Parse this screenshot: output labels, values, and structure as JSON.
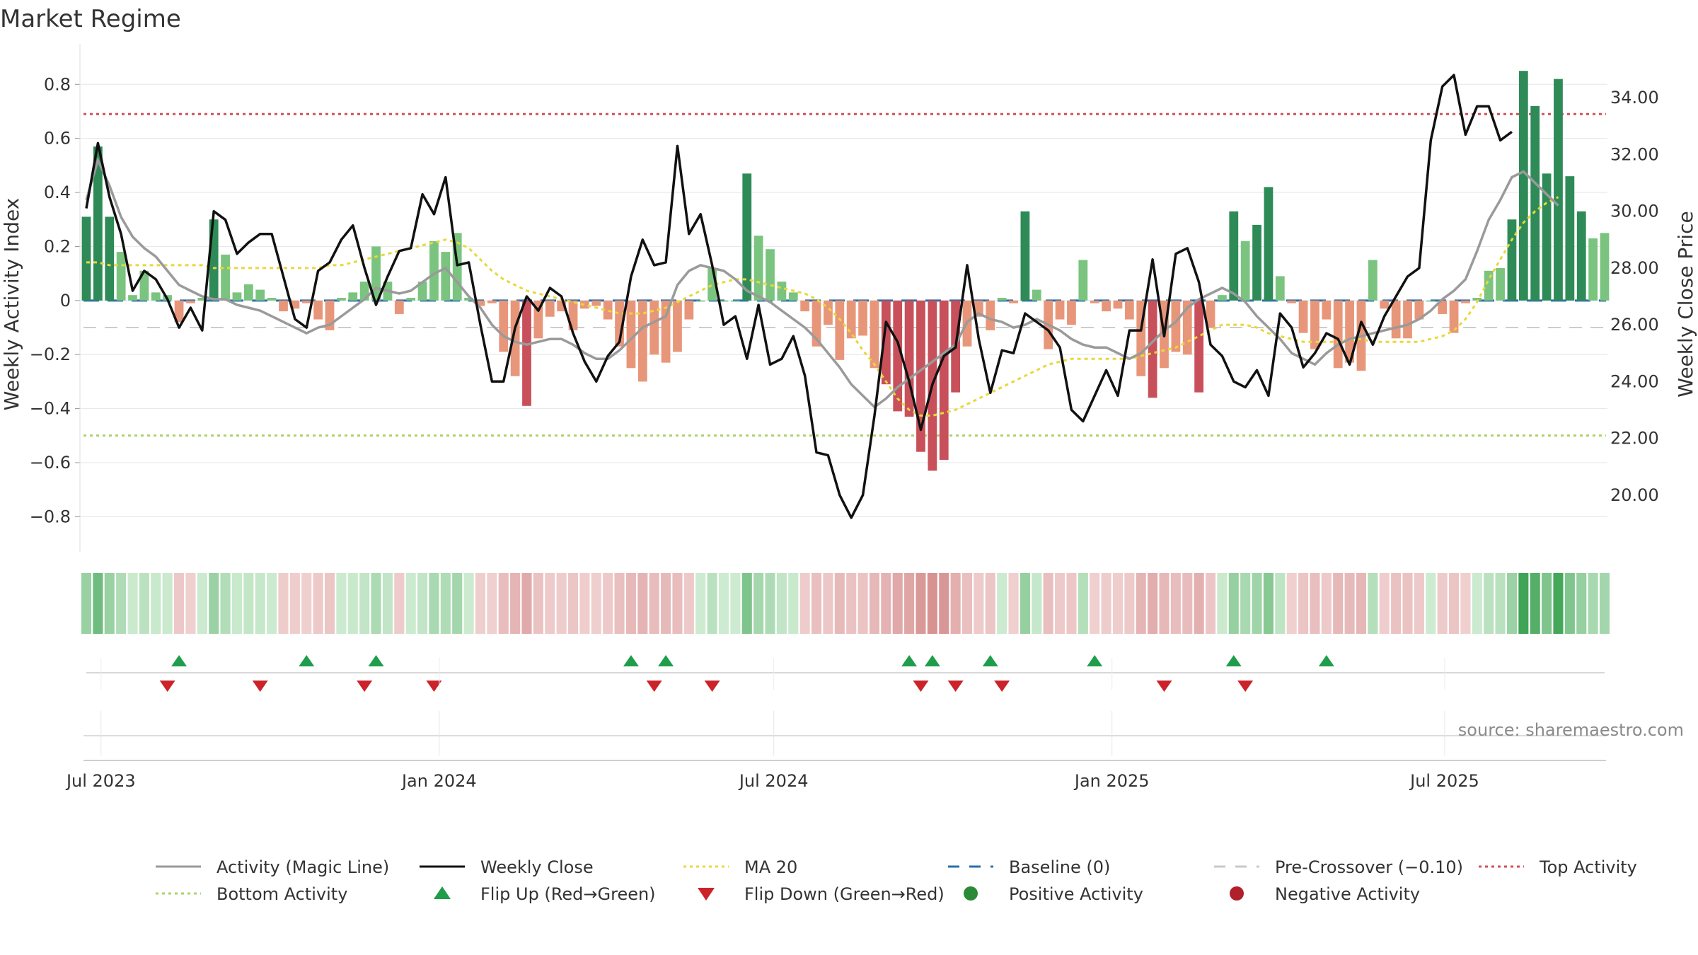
{
  "chart_data": {
    "type": "bar+line",
    "title": "Market Regime",
    "ylabel_left": "Weekly Activity Index",
    "ylabel_right": "Weekly Close Price",
    "source_note": "source: sharemaestro.com",
    "left_axis": {
      "ylim": [
        -0.93,
        0.95
      ],
      "ticks": [
        -0.8,
        -0.6,
        -0.4,
        -0.2,
        0,
        0.2,
        0.4,
        0.6,
        0.8
      ],
      "tick_labels": [
        "−0.8",
        "−0.6",
        "−0.4",
        "−0.2",
        "0",
        "0.2",
        "0.4",
        "0.6",
        "0.8"
      ]
    },
    "right_axis": {
      "ylim": [
        18.0,
        35.9
      ],
      "ticks": [
        20,
        22,
        24,
        26,
        28,
        30,
        32,
        34
      ],
      "tick_labels": [
        "20.00",
        "22.00",
        "24.00",
        "26.00",
        "28.00",
        "30.00",
        "32.00",
        "34.00"
      ]
    },
    "x_axis": {
      "start": "2023-06-23",
      "end": "2025-09-26",
      "ticks": [
        {
          "date": "2023-07-01",
          "label": "Jul 2023"
        },
        {
          "date": "2024-01-01",
          "label": "Jan 2024"
        },
        {
          "date": "2024-07-01",
          "label": "Jul 2024"
        },
        {
          "date": "2025-01-01",
          "label": "Jan 2025"
        },
        {
          "date": "2025-07-01",
          "label": "Jul 2025"
        }
      ]
    },
    "reference_lines": {
      "top_activity": 0.69,
      "bottom_activity": -0.5,
      "pre_crossover": -0.1,
      "baseline": 0
    },
    "activity_index": [
      0.31,
      0.57,
      0.31,
      0.18,
      0.02,
      0.11,
      0.03,
      0.02,
      -0.08,
      -0.01,
      0.01,
      0.3,
      0.17,
      0.03,
      0.06,
      0.04,
      0.01,
      -0.04,
      -0.03,
      -0.01,
      -0.07,
      -0.11,
      0.01,
      0.03,
      0.07,
      0.2,
      0.07,
      -0.05,
      0.01,
      0.07,
      0.22,
      0.18,
      0.25,
      0.01,
      -0.02,
      -0.01,
      -0.19,
      -0.28,
      -0.39,
      -0.14,
      -0.06,
      -0.04,
      -0.11,
      -0.03,
      -0.02,
      -0.07,
      -0.17,
      -0.25,
      -0.3,
      -0.2,
      -0.23,
      -0.19,
      -0.07,
      0.0,
      0.12,
      0.0,
      0.0,
      0.47,
      0.24,
      0.19,
      0.07,
      0.03,
      -0.04,
      -0.17,
      -0.09,
      -0.22,
      -0.14,
      -0.13,
      -0.25,
      -0.31,
      -0.41,
      -0.43,
      -0.56,
      -0.63,
      -0.59,
      -0.34,
      -0.17,
      -0.06,
      -0.11,
      0.01,
      -0.01,
      0.33,
      0.04,
      -0.18,
      -0.07,
      -0.09,
      0.15,
      -0.01,
      -0.04,
      -0.03,
      -0.07,
      -0.28,
      -0.36,
      -0.25,
      -0.19,
      -0.2,
      -0.34,
      -0.1,
      0.02,
      0.33,
      0.22,
      0.28,
      0.42,
      0.09,
      -0.01,
      -0.12,
      -0.18,
      -0.07,
      -0.25,
      -0.23,
      -0.26,
      0.15,
      -0.03,
      -0.14,
      -0.14,
      -0.07,
      0.0,
      -0.05,
      -0.12,
      -0.01,
      0.01,
      0.11,
      0.12,
      0.3,
      0.85,
      0.72,
      0.47,
      0.82,
      0.46,
      0.33,
      0.23,
      0.25
    ],
    "weekly_close": [
      30.1,
      32.4,
      30.5,
      29.2,
      27.2,
      27.9,
      27.6,
      26.9,
      25.9,
      26.6,
      25.8,
      30.0,
      29.7,
      28.5,
      28.9,
      29.2,
      29.2,
      27.7,
      26.2,
      25.9,
      27.9,
      28.2,
      29.0,
      29.5,
      28.0,
      26.7,
      27.7,
      28.6,
      28.7,
      30.6,
      29.9,
      31.2,
      28.1,
      28.2,
      26.0,
      24.0,
      24.0,
      25.9,
      27.0,
      26.5,
      27.3,
      27.0,
      25.7,
      24.7,
      24.0,
      24.9,
      25.4,
      27.7,
      29.0,
      28.1,
      28.2,
      32.3,
      29.2,
      29.9,
      28.1,
      26.0,
      26.3,
      24.8,
      26.7,
      24.6,
      24.8,
      25.6,
      24.2,
      21.5,
      21.4,
      20.0,
      19.2,
      20.0,
      22.8,
      26.1,
      25.4,
      24.0,
      22.3,
      23.9,
      24.9,
      25.2,
      28.1,
      25.5,
      23.6,
      25.1,
      25.0,
      26.4,
      26.1,
      25.8,
      25.2,
      23.0,
      22.6,
      23.5,
      24.4,
      23.5,
      25.8,
      25.8,
      28.3,
      25.6,
      28.5,
      28.7,
      27.5,
      25.3,
      24.9,
      24.0,
      23.8,
      24.4,
      23.5,
      26.4,
      25.9,
      24.5,
      25.0,
      25.7,
      25.5,
      24.6,
      26.1,
      25.3,
      26.3,
      27.0,
      27.7,
      28.0,
      32.5,
      34.4,
      34.8,
      32.7,
      33.7,
      33.7,
      32.5,
      32.8
    ],
    "magic_line": [
      30.4,
      31.8,
      30.9,
      29.8,
      29.1,
      28.7,
      28.4,
      27.9,
      27.4,
      27.2,
      27.0,
      26.9,
      26.9,
      26.7,
      26.6,
      26.5,
      26.3,
      26.1,
      25.9,
      25.7,
      25.9,
      26.0,
      26.3,
      26.6,
      26.9,
      27.3,
      27.2,
      27.1,
      27.2,
      27.5,
      27.8,
      28.0,
      27.5,
      27.0,
      26.6,
      26.0,
      25.6,
      25.4,
      25.3,
      25.4,
      25.5,
      25.5,
      25.3,
      25.0,
      24.8,
      24.8,
      25.1,
      25.5,
      25.9,
      26.1,
      26.3,
      27.4,
      27.9,
      28.1,
      28.0,
      27.9,
      27.6,
      27.2,
      27.0,
      26.8,
      26.5,
      26.2,
      25.9,
      25.5,
      25.0,
      24.5,
      23.9,
      23.5,
      23.1,
      23.4,
      23.8,
      24.1,
      24.4,
      24.7,
      25.0,
      25.3,
      26.1,
      26.4,
      26.2,
      26.1,
      25.9,
      26.0,
      26.2,
      26.0,
      25.8,
      25.5,
      25.3,
      25.2,
      25.2,
      25.0,
      24.8,
      25.0,
      25.4,
      25.8,
      26.1,
      26.6,
      26.9,
      27.1,
      27.3,
      27.1,
      26.8,
      26.3,
      25.9,
      25.5,
      25.0,
      24.8,
      24.6,
      25.0,
      25.3,
      25.5,
      25.6,
      25.7,
      25.8,
      25.9,
      26.0,
      26.2,
      26.5,
      26.9,
      27.2,
      27.6,
      28.6,
      29.7,
      30.4,
      31.2,
      31.4,
      31.0,
      30.6,
      30.2
    ],
    "ma20": [
      28.2,
      28.2,
      28.1,
      28.1,
      28.1,
      28.1,
      28.1,
      28.1,
      28.1,
      28.1,
      28.1,
      28.0,
      28.0,
      28.0,
      28.0,
      28.0,
      28.0,
      28.0,
      28.0,
      28.0,
      28.0,
      28.1,
      28.1,
      28.2,
      28.3,
      28.4,
      28.5,
      28.6,
      28.7,
      28.8,
      28.9,
      29.0,
      28.9,
      28.7,
      28.3,
      27.9,
      27.6,
      27.4,
      27.2,
      27.1,
      27.0,
      26.9,
      26.8,
      26.7,
      26.6,
      26.5,
      26.4,
      26.4,
      26.4,
      26.5,
      26.6,
      26.8,
      27.0,
      27.2,
      27.4,
      27.5,
      27.6,
      27.6,
      27.5,
      27.4,
      27.3,
      27.2,
      27.1,
      26.9,
      26.6,
      26.2,
      25.7,
      25.1,
      24.6,
      24.0,
      23.4,
      23.0,
      22.8,
      22.8,
      22.9,
      23.0,
      23.2,
      23.4,
      23.6,
      23.8,
      24.0,
      24.2,
      24.4,
      24.6,
      24.7,
      24.8,
      24.8,
      24.8,
      24.8,
      24.8,
      24.8,
      24.9,
      25.0,
      25.1,
      25.2,
      25.4,
      25.6,
      25.8,
      26.0,
      26.0,
      26.0,
      25.9,
      25.7,
      25.6,
      25.5,
      25.4,
      25.4,
      25.4,
      25.4,
      25.5,
      25.5,
      25.4,
      25.4,
      25.4,
      25.4,
      25.4,
      25.5,
      25.6,
      25.8,
      26.2,
      26.8,
      27.6,
      28.3,
      29.0,
      29.6,
      30.0,
      30.3,
      30.5
    ],
    "regime_band": [
      0.31,
      0.57,
      0.31,
      0.18,
      0.02,
      0.11,
      0.03,
      0.02,
      -0.08,
      -0.01,
      0.01,
      0.3,
      0.17,
      0.03,
      0.06,
      0.04,
      0.01,
      -0.04,
      -0.03,
      -0.01,
      -0.07,
      -0.11,
      0.01,
      0.03,
      0.07,
      0.2,
      0.07,
      -0.05,
      0.01,
      0.07,
      0.22,
      0.18,
      0.25,
      0.01,
      -0.02,
      -0.01,
      -0.19,
      -0.28,
      -0.39,
      -0.14,
      -0.06,
      -0.04,
      -0.11,
      -0.03,
      -0.02,
      -0.07,
      -0.17,
      -0.25,
      -0.3,
      -0.2,
      -0.23,
      -0.19,
      -0.07,
      0.0,
      0.12,
      0.0,
      0.0,
      0.47,
      0.24,
      0.19,
      0.07,
      0.03,
      -0.04,
      -0.17,
      -0.09,
      -0.22,
      -0.14,
      -0.13,
      -0.25,
      -0.31,
      -0.41,
      -0.43,
      -0.56,
      -0.63,
      -0.59,
      -0.34,
      -0.17,
      -0.06,
      -0.11,
      0.01,
      -0.01,
      0.33,
      0.04,
      -0.18,
      -0.07,
      -0.09,
      0.15,
      -0.01,
      -0.04,
      -0.03,
      -0.07,
      -0.28,
      -0.36,
      -0.25,
      -0.19,
      -0.2,
      -0.34,
      -0.1,
      0.02,
      0.33,
      0.22,
      0.28,
      0.42,
      0.09,
      -0.01,
      -0.12,
      -0.18,
      -0.07,
      -0.25,
      -0.23,
      -0.26,
      0.15,
      -0.03,
      -0.14,
      -0.14,
      -0.07,
      0.0,
      -0.05,
      -0.12,
      -0.01,
      0.01,
      0.11,
      0.12,
      0.3,
      0.85,
      0.72,
      0.47,
      0.82,
      0.46,
      0.33,
      0.23,
      0.25
    ],
    "flip_up_weeks": [
      8,
      19,
      25,
      47,
      50,
      71,
      73,
      78,
      87,
      99,
      107
    ],
    "flip_down_weeks": [
      7,
      15,
      24,
      30,
      49,
      54,
      72,
      75,
      79,
      93,
      100
    ],
    "legend": [
      {
        "label": "Activity (Magic Line)",
        "kind": "line",
        "color": "#9a9a9a"
      },
      {
        "label": "Weekly Close",
        "kind": "line",
        "color": "#111111"
      },
      {
        "label": "MA 20",
        "kind": "dotted",
        "color": "#e8d83a"
      },
      {
        "label": "Baseline (0)",
        "kind": "dashed",
        "color": "#2b6fa6"
      },
      {
        "label": "Pre-Crossover (−0.10)",
        "kind": "dashed",
        "color": "#c8c8c8"
      },
      {
        "label": "Top Activity",
        "kind": "dotted",
        "color": "#d0505a"
      },
      {
        "label": "Bottom Activity",
        "kind": "dotted",
        "color": "#a8d46a"
      },
      {
        "label": "Flip Up (Red→Green)",
        "kind": "triangle-up",
        "color": "#1f9d4b"
      },
      {
        "label": "Flip Down (Green→Red)",
        "kind": "triangle-down",
        "color": "#cc2229"
      },
      {
        "label": "Positive Activity",
        "kind": "circle",
        "color": "#2a8a35"
      },
      {
        "label": "Negative Activity",
        "kind": "circle",
        "color": "#b0202a"
      }
    ]
  }
}
